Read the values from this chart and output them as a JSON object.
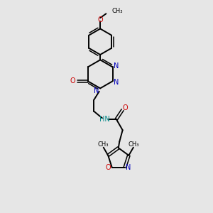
{
  "background_color": "#e6e6e6",
  "bond_color": "#000000",
  "n_color": "#0000bb",
  "o_color": "#cc0000",
  "hn_color": "#008888",
  "figsize": [
    3.0,
    3.0
  ],
  "dpi": 100,
  "xlim": [
    0,
    10
  ],
  "ylim": [
    0,
    10
  ]
}
